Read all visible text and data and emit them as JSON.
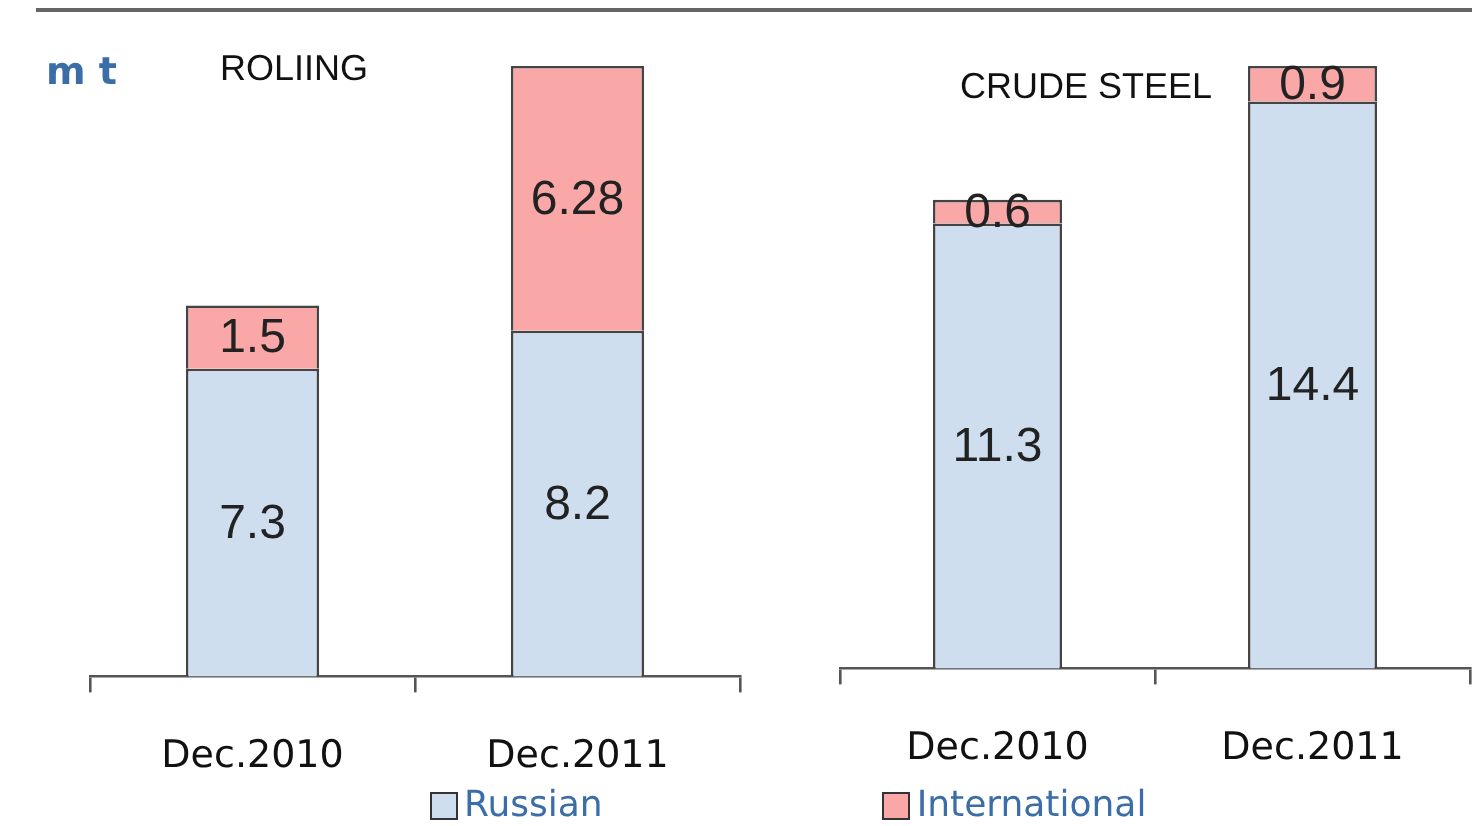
{
  "chart_data": [
    {
      "type": "bar",
      "title": "ROLIING",
      "ylabel": "m t",
      "categories": [
        "Dec.2010",
        "Dec.2011"
      ],
      "series": [
        {
          "name": "Russian",
          "color": "#cfdeef",
          "values": [
            7.3,
            8.2
          ]
        },
        {
          "name": "International",
          "color": "#f9a7a7",
          "values": [
            1.5,
            6.28
          ]
        }
      ],
      "stacked": true,
      "data_labels": true,
      "tick_labels": "x",
      "legend": "bottom"
    },
    {
      "type": "bar",
      "title": "CRUDE STEEL",
      "categories": [
        "Dec.2010",
        "Dec.2011"
      ],
      "series": [
        {
          "name": "Russian",
          "color": "#cfdeef",
          "values": [
            11.3,
            14.4
          ]
        },
        {
          "name": "International",
          "color": "#f9a7a7",
          "values": [
            0.6,
            0.9
          ]
        }
      ],
      "stacked": true,
      "data_labels": true,
      "tick_labels": "x"
    }
  ]
}
